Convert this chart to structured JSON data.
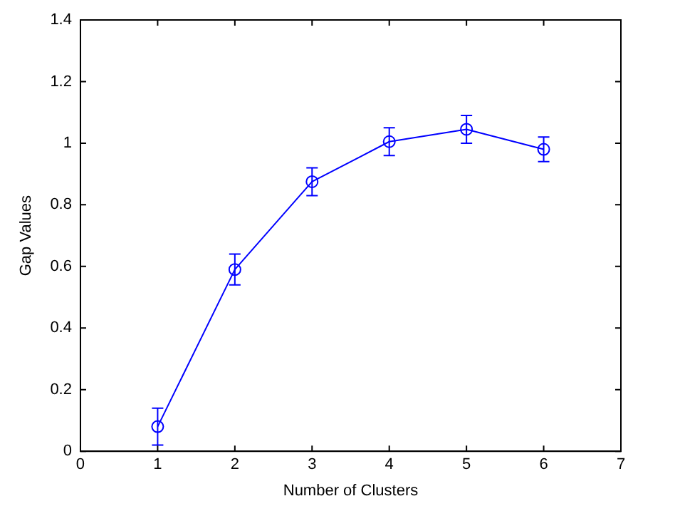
{
  "chart_data": {
    "type": "line",
    "xlabel": "Number of Clusters",
    "ylabel": "Gap Values",
    "x": [
      1,
      2,
      3,
      4,
      5,
      6
    ],
    "series": [
      {
        "color": "#0000ff",
        "values": [
          0.08,
          0.59,
          0.875,
          1.005,
          1.045,
          0.98
        ],
        "errors": [
          0.06,
          0.05,
          0.045,
          0.045,
          0.045,
          0.04
        ]
      }
    ],
    "xlim": [
      0,
      7
    ],
    "xticks": [
      0,
      1,
      2,
      3,
      4,
      5,
      6,
      7
    ],
    "ylim": [
      0,
      1.4
    ],
    "yticks": [
      0,
      0.2,
      0.4,
      0.6,
      0.8,
      1,
      1.2,
      1.4
    ],
    "grid": false,
    "legend": false,
    "marker": "circle",
    "line_style": "solid"
  }
}
